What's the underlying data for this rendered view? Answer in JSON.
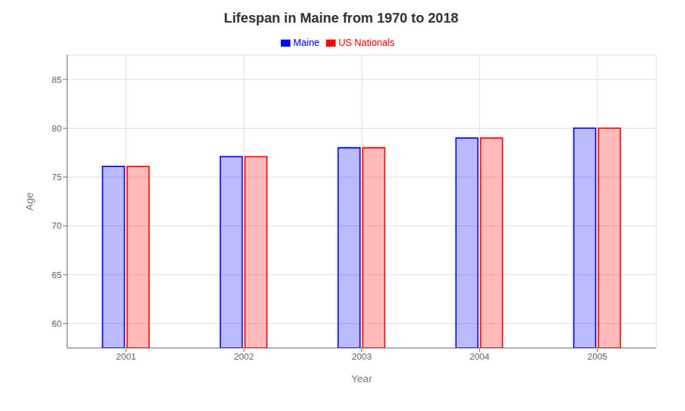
{
  "chart_data": {
    "type": "bar",
    "title": "Lifespan in Maine from 1970 to 2018",
    "x_label": "Year",
    "y_label": "Age",
    "categories": [
      "2001",
      "2002",
      "2003",
      "2004",
      "2005"
    ],
    "series": [
      {
        "name": "Maine",
        "color": "#0000ff",
        "values": [
          76.1,
          77.1,
          78.0,
          79.0,
          80.0
        ]
      },
      {
        "name": "US Nationals",
        "color": "#ff0000",
        "values": [
          76.1,
          77.1,
          78.0,
          79.0,
          80.0
        ]
      }
    ],
    "ylim": [
      57.5,
      87.5
    ],
    "yticks": [
      60,
      65,
      70,
      75,
      80,
      85
    ],
    "grid": true,
    "legend": "top"
  }
}
